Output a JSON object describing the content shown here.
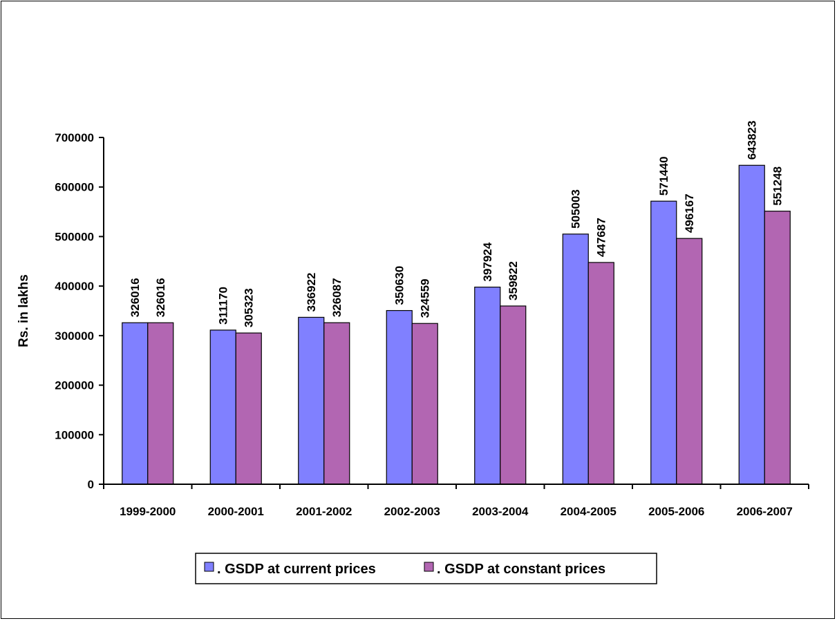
{
  "chart_data": {
    "type": "bar",
    "title": "",
    "xlabel": "",
    "ylabel": "Rs. in lakhs",
    "ylim": [
      0,
      700000
    ],
    "yticks": [
      0,
      100000,
      200000,
      300000,
      400000,
      500000,
      600000,
      700000
    ],
    "ytick_labels": [
      "0",
      "100000",
      "200000",
      "300000",
      "400000",
      "500000",
      "600000",
      "700000"
    ],
    "grid": false,
    "legend_position": "bottom",
    "categories": [
      "1999-2000",
      "2000-2001",
      "2001-2002",
      "2002-2003",
      "2003-2004",
      "2004-2005",
      "2005-2006",
      "2006-2007"
    ],
    "series": [
      {
        "name": ". GSDP at current prices",
        "color": "#8080ff",
        "values": [
          326016,
          311170,
          336922,
          350630,
          397924,
          505003,
          571440,
          643823
        ]
      },
      {
        "name": ". GSDP at constant prices",
        "color": "#b266b2",
        "values": [
          326016,
          305323,
          326087,
          324559,
          359822,
          447687,
          496167,
          551248
        ]
      }
    ]
  }
}
